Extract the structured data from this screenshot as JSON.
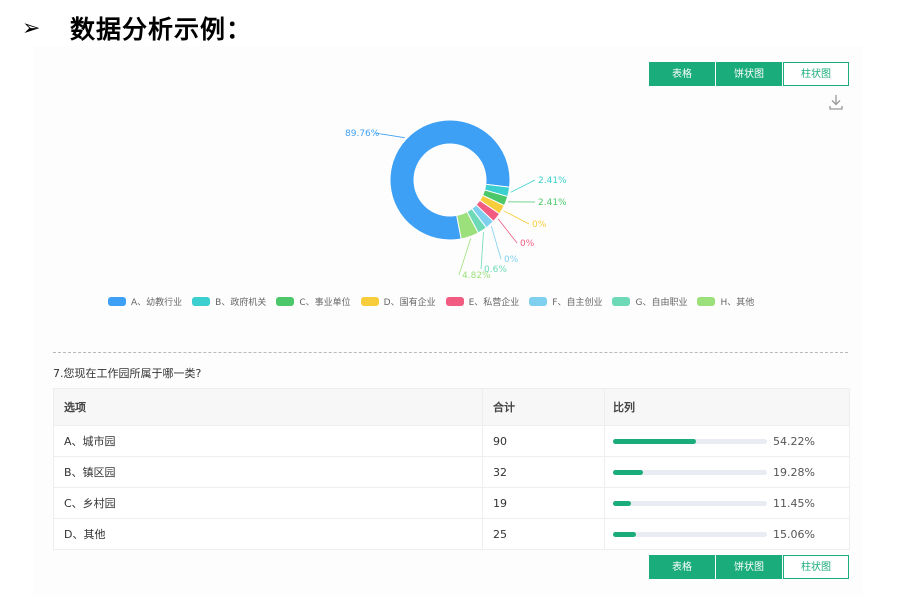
{
  "heading": {
    "arrow": "➢",
    "title": "数据分析示例："
  },
  "tabs": [
    "表格",
    "饼状图",
    "柱状图"
  ],
  "chart_data": {
    "type": "pie",
    "categories": [
      "A、幼教行业",
      "B、政府机关",
      "C、事业单位",
      "D、国有企业",
      "E、私营企业",
      "F、自主创业",
      "G、自由职业",
      "H、其他"
    ],
    "values": [
      89.76,
      2.41,
      2.41,
      0,
      0,
      0,
      0.6,
      4.82
    ],
    "labels": [
      "89.76%",
      "2.41%",
      "2.41%",
      "0%",
      "0%",
      "0%",
      "0.6%",
      "4.82%"
    ],
    "colors": [
      "#3ea0f5",
      "#3bcfcf",
      "#4cc76a",
      "#f7cd3b",
      "#f15c80",
      "#7fd0ee",
      "#6dd9b7",
      "#9be07a"
    ]
  },
  "legend": [
    {
      "label": "A、幼教行业",
      "color": "#3ea0f5"
    },
    {
      "label": "B、政府机关",
      "color": "#3bcfcf"
    },
    {
      "label": "C、事业单位",
      "color": "#4cc76a"
    },
    {
      "label": "D、国有企业",
      "color": "#f7cd3b"
    },
    {
      "label": "E、私营企业",
      "color": "#f15c80"
    },
    {
      "label": "F、自主创业",
      "color": "#7fd0ee"
    },
    {
      "label": "G、自由职业",
      "color": "#6dd9b7"
    },
    {
      "label": "H、其他",
      "color": "#9be07a"
    }
  ],
  "question": "7.您现在工作园所属于哪一类?",
  "table": {
    "headers": [
      "选项",
      "合计",
      "比列"
    ],
    "rows": [
      {
        "option": "A、城市园",
        "count": "90",
        "ratio": 54.22,
        "ratio_label": "54.22%"
      },
      {
        "option": "B、镇区园",
        "count": "32",
        "ratio": 19.28,
        "ratio_label": "19.28%"
      },
      {
        "option": "C、乡村园",
        "count": "19",
        "ratio": 11.45,
        "ratio_label": "11.45%"
      },
      {
        "option": "D、其他",
        "count": "25",
        "ratio": 15.06,
        "ratio_label": "15.06%"
      }
    ]
  },
  "icons": {
    "download": "download-icon"
  }
}
